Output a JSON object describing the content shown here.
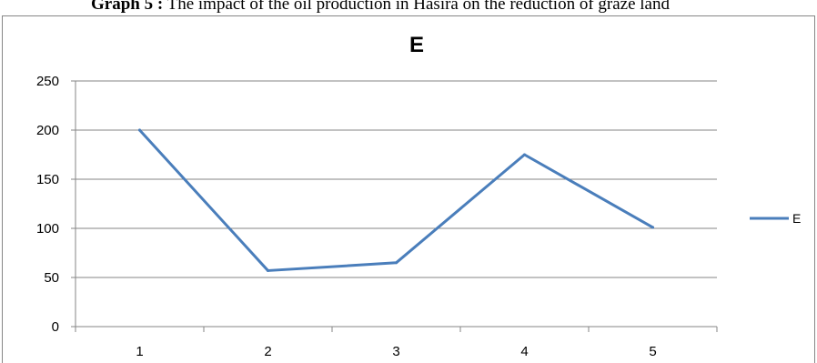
{
  "caption": {
    "prefix": "Graph 5 :",
    "text": " The impact of the oil production in Hasira on the reduction of graze land"
  },
  "chart_data": {
    "type": "line",
    "title": "E",
    "xlabel": "",
    "ylabel": "",
    "categories": [
      "1",
      "2",
      "3",
      "4",
      "5"
    ],
    "series": [
      {
        "name": "E",
        "values": [
          200,
          57,
          65,
          175,
          101
        ],
        "color": "#4a7ebb"
      }
    ],
    "ylim": [
      0,
      250
    ],
    "yticks": [
      0,
      50,
      100,
      150,
      200,
      250
    ],
    "grid": "horizontal",
    "legend": "right"
  }
}
